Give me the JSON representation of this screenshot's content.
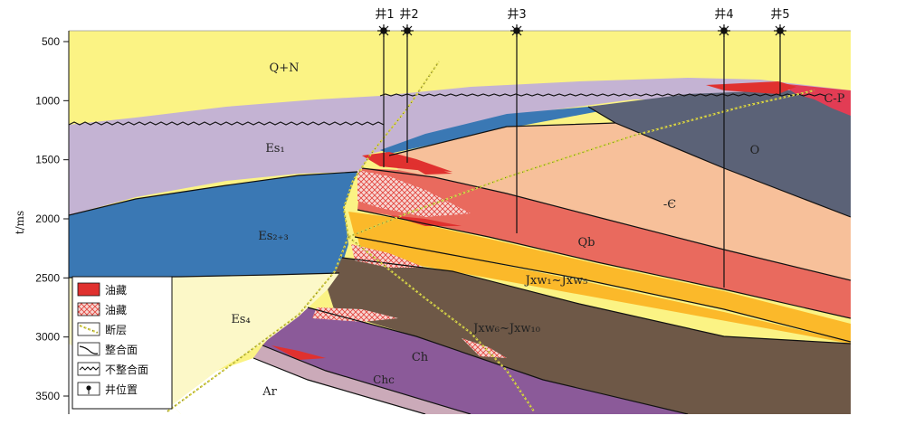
{
  "axis": {
    "title": "t/ms",
    "ticks": [
      500,
      1000,
      1500,
      2000,
      2500,
      3000,
      3500
    ]
  },
  "wells": [
    {
      "name": "井1"
    },
    {
      "name": "井2"
    },
    {
      "name": "井3"
    },
    {
      "name": "井4"
    },
    {
      "name": "井5"
    }
  ],
  "units": {
    "qn": "Q+N",
    "es1": "Es₁",
    "es23": "Es₂₊₃",
    "es4": "Es₄",
    "cp": "C-P",
    "o": "O",
    "cam": "-Є",
    "qb": "Qb",
    "jxw15": "Jxw₁~Jxw₅",
    "jxw610": "Jxw₆~Jxw₁₀",
    "ch": "Ch",
    "chc": "Chc",
    "ar": "Ar"
  },
  "legend": [
    {
      "label": "油藏"
    },
    {
      "label": "油藏"
    },
    {
      "label": "断层"
    },
    {
      "label": "整合面"
    },
    {
      "label": "不整合面"
    },
    {
      "label": "井位置"
    }
  ],
  "colors": {
    "qn": "#fbf384",
    "es1": "#c4b3d3",
    "es23": "#3a78b4",
    "es4": "#fcf8c8",
    "cp": "#e23c54",
    "o": "#5b6277",
    "cam": "#f7c09a",
    "qb": "#e96a5e",
    "jxw15": "#fbb92a",
    "jxw610": "#6e5847",
    "ch": "#8b5a99",
    "chc": "#cbaab9",
    "ar": "#ffffff",
    "oil": "#e0312f",
    "fault": "#d8d34a"
  }
}
